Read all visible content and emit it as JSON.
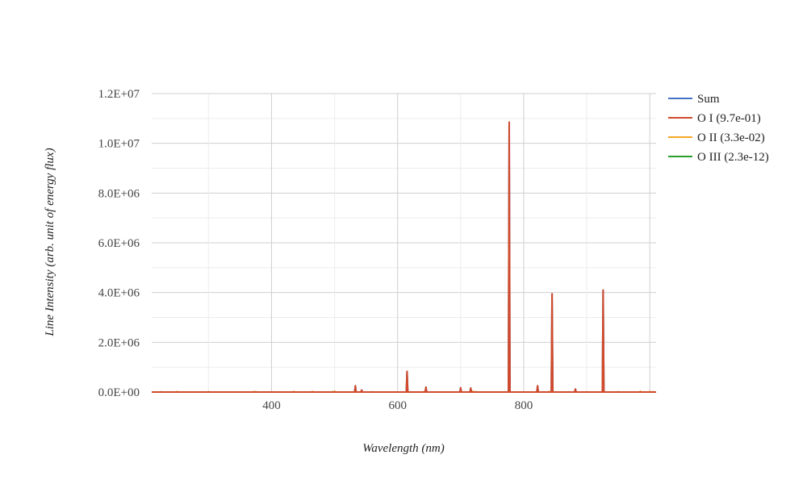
{
  "chart_data": {
    "type": "line",
    "title": "",
    "xlabel": "Wavelength (nm)",
    "ylabel": "Line Intensity (arb. unit of energy flux)",
    "xlim": [
      210,
      1010
    ],
    "ylim": [
      0,
      12000000
    ],
    "x_ticks": [
      400,
      600,
      800
    ],
    "x_tick_labels": [
      "400",
      "600",
      "800"
    ],
    "y_ticks": [
      0,
      2000000,
      4000000,
      6000000,
      8000000,
      10000000,
      12000000
    ],
    "y_tick_labels": [
      "0.0E+00",
      "2.0E+06",
      "4.0E+06",
      "6.0E+06",
      "8.0E+06",
      "1.0E+07",
      "1.2E+07"
    ],
    "grid": true,
    "legend_position": "top-right",
    "colors": {
      "sum": "#4472c4",
      "o1": "#d04a2b",
      "o2": "#f5a623",
      "o3": "#2ca02c"
    },
    "series": [
      {
        "name": "Sum",
        "color": "#4472c4",
        "peaks": [
          [
            533,
            250000
          ],
          [
            543,
            80000
          ],
          [
            615,
            830000
          ],
          [
            645,
            200000
          ],
          [
            700,
            170000
          ],
          [
            716,
            160000
          ],
          [
            777,
            10850000
          ],
          [
            822,
            250000
          ],
          [
            845,
            3950000
          ],
          [
            882,
            120000
          ],
          [
            926,
            4100000
          ]
        ]
      },
      {
        "name": "O I (9.7e-01)",
        "color": "#d04a2b",
        "peaks": [
          [
            533,
            250000
          ],
          [
            543,
            80000
          ],
          [
            615,
            830000
          ],
          [
            645,
            200000
          ],
          [
            700,
            170000
          ],
          [
            716,
            160000
          ],
          [
            777,
            10850000
          ],
          [
            822,
            250000
          ],
          [
            845,
            3950000
          ],
          [
            882,
            120000
          ],
          [
            926,
            4100000
          ]
        ]
      },
      {
        "name": "O II (3.3e-02)",
        "color": "#f5a623",
        "peaks": [
          [
            250,
            20000
          ],
          [
            300,
            15000
          ],
          [
            372,
            20000
          ],
          [
            435,
            25000
          ],
          [
            465,
            20000
          ],
          [
            500,
            30000
          ],
          [
            642,
            20000
          ],
          [
            720,
            30000
          ],
          [
            840,
            25000
          ],
          [
            985,
            30000
          ],
          [
            1000,
            20000
          ]
        ]
      },
      {
        "name": "O III (2.3e-12)",
        "color": "#2ca02c",
        "peaks": [
          [
            225,
            10000
          ],
          [
            300,
            8000
          ],
          [
            375,
            10000
          ],
          [
            497,
            10000
          ],
          [
            560,
            8000
          ],
          [
            725,
            10000
          ],
          [
            775,
            8000
          ],
          [
            950,
            10000
          ],
          [
            1005,
            8000
          ]
        ]
      }
    ]
  }
}
